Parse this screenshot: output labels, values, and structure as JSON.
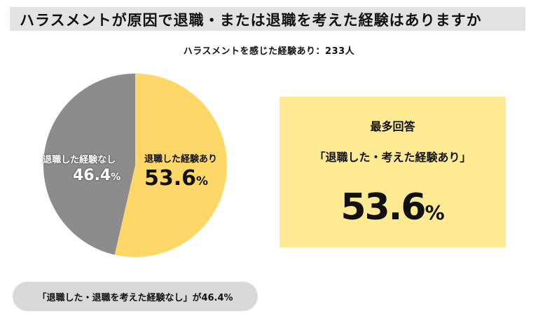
{
  "title": "ハラスメントが原因で退職・または退職を考えた経験はありますか",
  "subtitle": "ハラスメントを感じた経験あり：233人",
  "chart_data": {
    "type": "pie",
    "slices": [
      {
        "label": "退職した経験あり",
        "value": 53.6,
        "color": "#fdd767"
      },
      {
        "label": "退職した経験なし",
        "value": 46.4,
        "color": "#8c8c8c"
      }
    ],
    "unit": "%",
    "start": "12-o'clock",
    "direction": "clockwise"
  },
  "labels": {
    "yes_name": "退職した経験あり",
    "yes_value": "53.6",
    "no_name": "退職した経験なし",
    "no_value": "46.4",
    "pct": "%"
  },
  "callout": {
    "heading": "最多回答",
    "sub": "「退職した・考えた経験あり」",
    "value": "53.6",
    "pct": "%"
  },
  "pill_text": "「退職した・退職を考えた経験なし」が46.4%"
}
